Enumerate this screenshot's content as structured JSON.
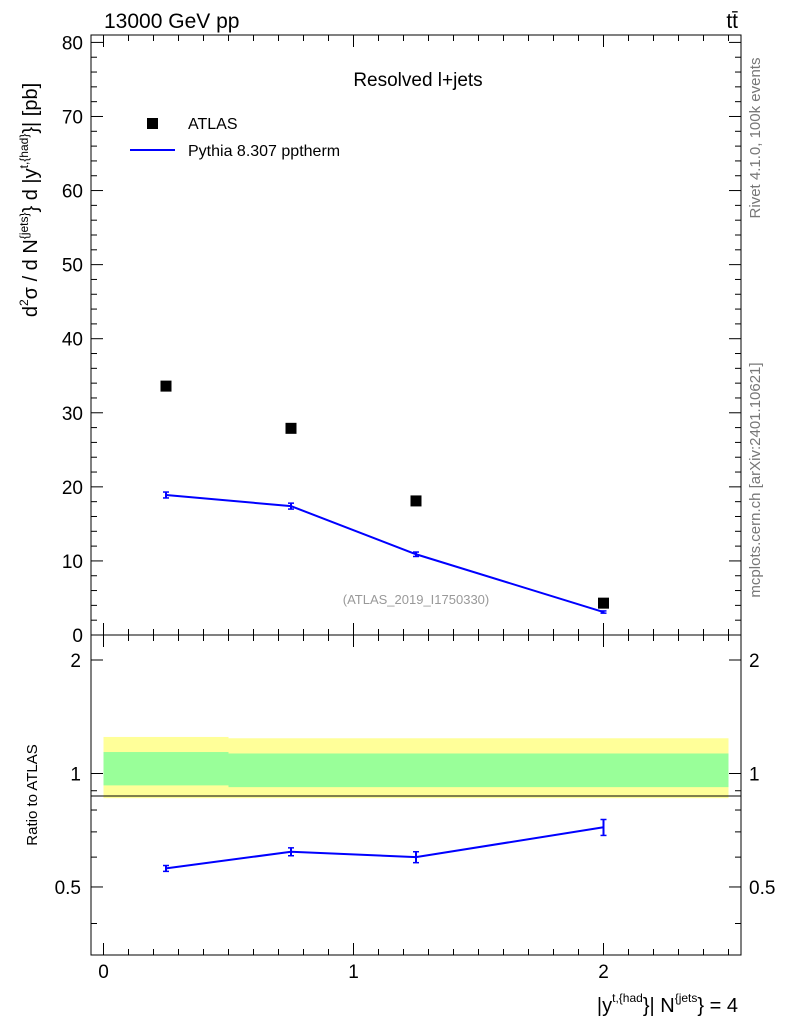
{
  "header": {
    "energy": "13000 GeV pp",
    "process": "tt̄"
  },
  "side_labels": {
    "rivet": "Rivet 4.1.0,  100k events",
    "mcplots": "mcplots.cern.ch [arXiv:2401.10621]"
  },
  "chart_data": [
    {
      "type": "scatter",
      "panel": "main",
      "title": "Resolved l+jets",
      "analysis": "(ATLAS_2019_I1750330)",
      "ylabel": "d²σ / d N^{jets} d |y^{t,{had}}| [pb]",
      "ylim": [
        0,
        81
      ],
      "yticks": [
        0,
        10,
        20,
        30,
        40,
        50,
        60,
        70,
        80
      ],
      "xlim": [
        -0.05,
        2.55
      ],
      "legend": [
        {
          "name": "ATLAS",
          "kind": "marker"
        },
        {
          "name": "Pythia 8.307 pptherm",
          "kind": "line",
          "color": "#0000ff"
        }
      ],
      "series": [
        {
          "name": "ATLAS",
          "x": [
            0.25,
            0.75,
            1.25,
            2.0
          ],
          "y": [
            33.6,
            27.9,
            18.1,
            4.3
          ]
        },
        {
          "name": "Pythia 8.307 pptherm",
          "x": [
            0.25,
            0.75,
            1.25,
            2.0
          ],
          "y": [
            18.9,
            17.4,
            10.9,
            3.1
          ],
          "err": [
            0.4,
            0.4,
            0.3,
            0.15
          ]
        }
      ]
    },
    {
      "type": "line",
      "panel": "ratio",
      "ylabel": "Ratio to ATLAS",
      "ylim": [
        0.33,
        2.33
      ],
      "yticks": [
        0.5,
        1,
        2
      ],
      "ytick_labels": [
        "0.5",
        "1",
        "2"
      ],
      "xlabel": "|y^{t,{had}}| N^{jets} = 4",
      "xticks": [
        0,
        1,
        2
      ],
      "xtick_labels": [
        "0",
        "1",
        "2"
      ],
      "xlim": [
        -0.05,
        2.55
      ],
      "bands": [
        {
          "name": "yellow",
          "color": "#ffff99",
          "bins": [
            [
              0,
              0.5,
              0.86,
              1.25
            ],
            [
              0.5,
              1.5,
              0.86,
              1.24
            ],
            [
              1.5,
              2.5,
              0.86,
              1.24
            ]
          ]
        },
        {
          "name": "green",
          "color": "#99ff99",
          "bins": [
            [
              0,
              0.5,
              0.93,
              1.14
            ],
            [
              0.5,
              1.5,
              0.92,
              1.13
            ],
            [
              1.5,
              2.5,
              0.92,
              1.13
            ]
          ]
        }
      ],
      "series": [
        {
          "name": "Pythia 8.307 pptherm",
          "x": [
            0.25,
            0.75,
            1.25,
            2.0
          ],
          "y": [
            0.56,
            0.62,
            0.6,
            0.72
          ],
          "err": [
            0.01,
            0.015,
            0.02,
            0.035
          ]
        }
      ]
    }
  ]
}
